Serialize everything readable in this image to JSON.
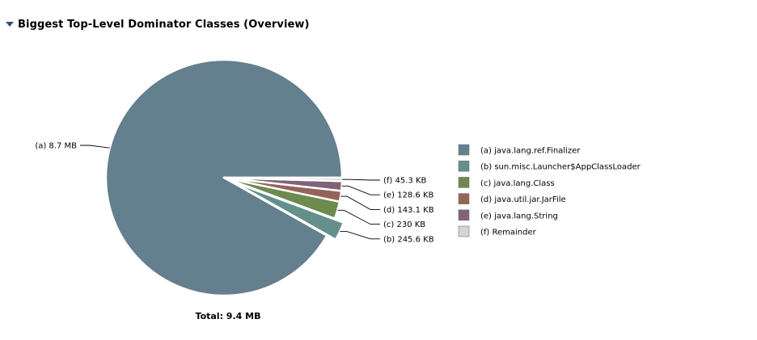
{
  "section": {
    "title": "Biggest Top-Level Dominator Classes (Overview)",
    "expanded": true
  },
  "chart_data": {
    "type": "pie",
    "title": "",
    "total_label": "Total: 9.4 MB",
    "total_kb": 9626,
    "exploded_series": "b",
    "legend_placement": "right",
    "slices": [
      {
        "key": "a",
        "name": "java.lang.ref.Finalizer",
        "value_kb": 8908.8,
        "label": "(a)  8.7 MB",
        "legend": "(a)  java.lang.ref.Finalizer",
        "color": "#647f8d"
      },
      {
        "key": "b",
        "name": "sun.misc.Launcher$AppClassLoader",
        "value_kb": 245.6,
        "label": "(b)  245.6 KB",
        "legend": "(b)  sun.misc.Launcher$AppClassLoader",
        "color": "#64908c"
      },
      {
        "key": "c",
        "name": "java.lang.Class",
        "value_kb": 230,
        "label": "(c)  230 KB",
        "legend": "(c)  java.lang.Class",
        "color": "#6d8a4f"
      },
      {
        "key": "d",
        "name": "java.util.jar.JarFile",
        "value_kb": 143.1,
        "label": "(d)  143.1 KB",
        "legend": "(d)  java.util.jar.JarFile",
        "color": "#946459"
      },
      {
        "key": "e",
        "name": "java.lang.String",
        "value_kb": 128.6,
        "label": "(e)  128.6 KB",
        "legend": "(e)  java.lang.String",
        "color": "#816379"
      },
      {
        "key": "f",
        "name": "Remainder",
        "value_kb": 45.3,
        "label": "(f)  45.3 KB",
        "legend": "(f)  Remainder",
        "color": "#d5d5d5"
      }
    ]
  }
}
